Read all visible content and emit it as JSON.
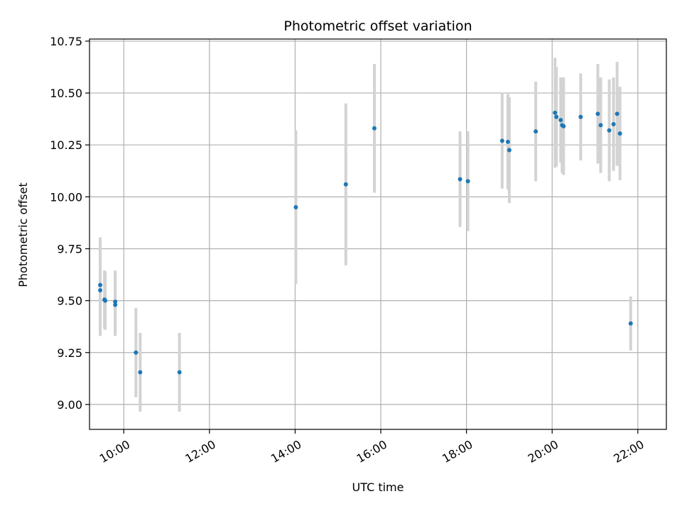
{
  "chart_data": {
    "type": "scatter",
    "title": "Photometric offset variation",
    "xlabel": "UTC time",
    "ylabel": "Photometric offset",
    "x_axis_type": "time",
    "xlim": [
      "09:12",
      "22:40"
    ],
    "ylim": [
      8.88,
      10.76
    ],
    "xticks": [
      "10:00",
      "12:00",
      "14:00",
      "16:00",
      "18:00",
      "20:00",
      "22:00"
    ],
    "yticks": [
      9.0,
      9.25,
      9.5,
      9.75,
      10.0,
      10.25,
      10.5,
      10.75
    ],
    "ytick_labels": [
      "9.00",
      "9.25",
      "9.50",
      "9.75",
      "10.00",
      "10.25",
      "10.50",
      "10.75"
    ],
    "grid": true,
    "colors": {
      "point": "#1f77b4",
      "errorbar": "#d3d3d3",
      "grid": "#b0b0b0"
    },
    "points": [
      {
        "t": "09:27",
        "y": 9.575,
        "err": 0.23
      },
      {
        "t": "09:27",
        "y": 9.55,
        "err": 0.22
      },
      {
        "t": "09:33",
        "y": 9.505,
        "err": 0.14
      },
      {
        "t": "09:34",
        "y": 9.5,
        "err": 0.14
      },
      {
        "t": "09:48",
        "y": 9.495,
        "err": 0.15
      },
      {
        "t": "09:48",
        "y": 9.48,
        "err": 0.15
      },
      {
        "t": "10:17",
        "y": 9.25,
        "err": 0.215
      },
      {
        "t": "10:23",
        "y": 9.155,
        "err": 0.19
      },
      {
        "t": "11:18",
        "y": 9.155,
        "err": 0.19
      },
      {
        "t": "14:01",
        "y": 9.95,
        "err": 0.37
      },
      {
        "t": "15:11",
        "y": 10.06,
        "err": 0.39
      },
      {
        "t": "15:51",
        "y": 10.33,
        "err": 0.31
      },
      {
        "t": "17:51",
        "y": 10.085,
        "err": 0.23
      },
      {
        "t": "18:02",
        "y": 10.075,
        "err": 0.24
      },
      {
        "t": "18:50",
        "y": 10.27,
        "err": 0.23
      },
      {
        "t": "18:58",
        "y": 10.265,
        "err": 0.23
      },
      {
        "t": "19:00",
        "y": 10.225,
        "err": 0.255
      },
      {
        "t": "19:37",
        "y": 10.315,
        "err": 0.24
      },
      {
        "t": "20:04",
        "y": 10.405,
        "err": 0.265
      },
      {
        "t": "20:06",
        "y": 10.385,
        "err": 0.24
      },
      {
        "t": "20:12",
        "y": 10.37,
        "err": 0.205
      },
      {
        "t": "20:14",
        "y": 10.345,
        "err": 0.23
      },
      {
        "t": "20:16",
        "y": 10.34,
        "err": 0.235
      },
      {
        "t": "20:40",
        "y": 10.385,
        "err": 0.21
      },
      {
        "t": "21:04",
        "y": 10.4,
        "err": 0.24
      },
      {
        "t": "21:08",
        "y": 10.345,
        "err": 0.23
      },
      {
        "t": "21:20",
        "y": 10.32,
        "err": 0.245
      },
      {
        "t": "21:26",
        "y": 10.35,
        "err": 0.225
      },
      {
        "t": "21:31",
        "y": 10.4,
        "err": 0.25
      },
      {
        "t": "21:35",
        "y": 10.305,
        "err": 0.225
      },
      {
        "t": "21:50",
        "y": 9.39,
        "err": 0.13
      }
    ]
  }
}
